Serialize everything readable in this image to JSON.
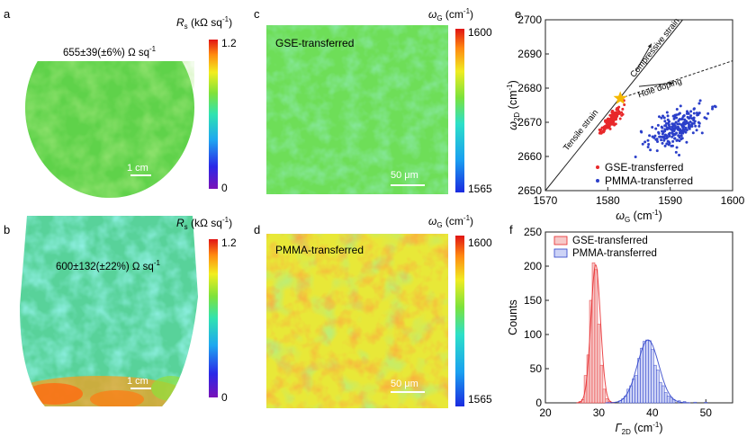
{
  "panels": {
    "a": {
      "letter": "a",
      "annotation": "655±39(±6%) Ω sq",
      "annotation_sup": "-1",
      "scalebar": "1 cm",
      "cbar_symbol": "R",
      "cbar_sub": "s",
      "cbar_unit": " (kΩ sq",
      "cbar_unit_sup": "-1",
      "cbar_unit_end": ")",
      "cbar_max": "1.2",
      "cbar_min": "0"
    },
    "b": {
      "letter": "b",
      "annotation": "600±132(±22%) Ω sq",
      "annotation_sup": "-1",
      "scalebar": "1 cm",
      "cbar_symbol": "R",
      "cbar_sub": "s",
      "cbar_unit": " (kΩ sq",
      "cbar_unit_sup": "-1",
      "cbar_unit_end": ")",
      "cbar_max": "1.2",
      "cbar_min": "0"
    },
    "c": {
      "letter": "c",
      "label": "GSE-transferred",
      "scalebar": "50 μm",
      "cbar_symbol": "ω",
      "cbar_sub": "G",
      "cbar_unit": " (cm",
      "cbar_unit_sup": "-1",
      "cbar_unit_end": ")",
      "cbar_max": "1600",
      "cbar_min": "1565"
    },
    "d": {
      "letter": "d",
      "label": "PMMA-transferred",
      "scalebar": "50 μm",
      "cbar_symbol": "ω",
      "cbar_sub": "G",
      "cbar_unit": " (cm",
      "cbar_unit_sup": "-1",
      "cbar_unit_end": ")",
      "cbar_max": "1600",
      "cbar_min": "1565"
    }
  },
  "colors": {
    "gse": "#e8282a",
    "pmma": "#2b3fc9",
    "star": "#f5b800"
  },
  "chart_data": [
    {
      "panel": "e",
      "type": "scatter",
      "xlabel_symbol": "ω",
      "xlabel_sub": "G",
      "xlabel_unit": " (cm",
      "xlabel_unit_sup": "-1",
      "xlabel_unit_end": ")",
      "ylabel_symbol": "ω",
      "ylabel_sub": "2D",
      "ylabel_unit": " (cm",
      "ylabel_unit_sup": "-1",
      "ylabel_unit_end": ")",
      "xlim": [
        1570,
        1600
      ],
      "ylim": [
        2650,
        2700
      ],
      "xticks": [
        1570,
        1580,
        1590,
        1600
      ],
      "yticks": [
        2650,
        2660,
        2670,
        2680,
        2690,
        2700
      ],
      "reference_point": [
        1582,
        2677
      ],
      "lines": [
        {
          "name": "Tensile strain / Compressive strain",
          "x": [
            1570,
            1592
          ],
          "y": [
            2650,
            2700
          ]
        },
        {
          "name": "Hole doping",
          "x": [
            1582,
            1600
          ],
          "y": [
            2677,
            2688
          ]
        }
      ],
      "annotations": [
        "Compressive strain",
        "Hole doping",
        "Tensile strain"
      ],
      "legend_position": "bottom-right",
      "series": [
        {
          "name": "GSE-transferred",
          "center": [
            1580.5,
            2670.5
          ],
          "spread": [
            0.8,
            2.0
          ],
          "count": 150
        },
        {
          "name": "PMMA-transferred",
          "center": [
            1591.0,
            2668.5
          ],
          "spread": [
            2.2,
            3.0
          ],
          "count": 220
        }
      ]
    },
    {
      "panel": "f",
      "type": "bar",
      "xlabel_symbol": "Γ",
      "xlabel_sub": "2D",
      "xlabel_unit": " (cm",
      "xlabel_unit_sup": "-1",
      "xlabel_unit_end": ")",
      "ylabel": "Counts",
      "xlim": [
        20,
        55
      ],
      "ylim": [
        0,
        250
      ],
      "xticks": [
        20,
        30,
        40,
        50
      ],
      "yticks": [
        0,
        50,
        100,
        150,
        200,
        250
      ],
      "legend_position": "top-left",
      "series": [
        {
          "name": "GSE-transferred",
          "bins": [
            26.5,
            27.0,
            27.5,
            28.0,
            28.5,
            29.0,
            29.5,
            30.0,
            30.5,
            31.0,
            31.5,
            32.0
          ],
          "counts": [
            2,
            5,
            40,
            70,
            150,
            205,
            195,
            115,
            55,
            20,
            6,
            2
          ]
        },
        {
          "name": "PMMA-transferred",
          "bins": [
            34.0,
            34.5,
            35.0,
            35.5,
            36.0,
            36.5,
            37.0,
            37.5,
            38.0,
            38.5,
            39.0,
            39.5,
            40.0,
            40.5,
            41.0,
            41.5,
            42.0,
            42.5,
            43.0,
            43.5,
            44.0,
            45.0,
            46.0,
            48.0,
            50.0
          ],
          "counts": [
            3,
            6,
            10,
            20,
            25,
            35,
            40,
            65,
            80,
            90,
            92,
            91,
            78,
            55,
            48,
            30,
            25,
            15,
            10,
            8,
            5,
            3,
            2,
            1,
            1
          ]
        }
      ],
      "fits": [
        {
          "name": "GSE-transferred",
          "mean": 29.4,
          "sigma": 0.9,
          "peak": 202
        },
        {
          "name": "PMMA-transferred",
          "mean": 39.2,
          "sigma": 2.0,
          "peak": 92
        }
      ]
    }
  ]
}
